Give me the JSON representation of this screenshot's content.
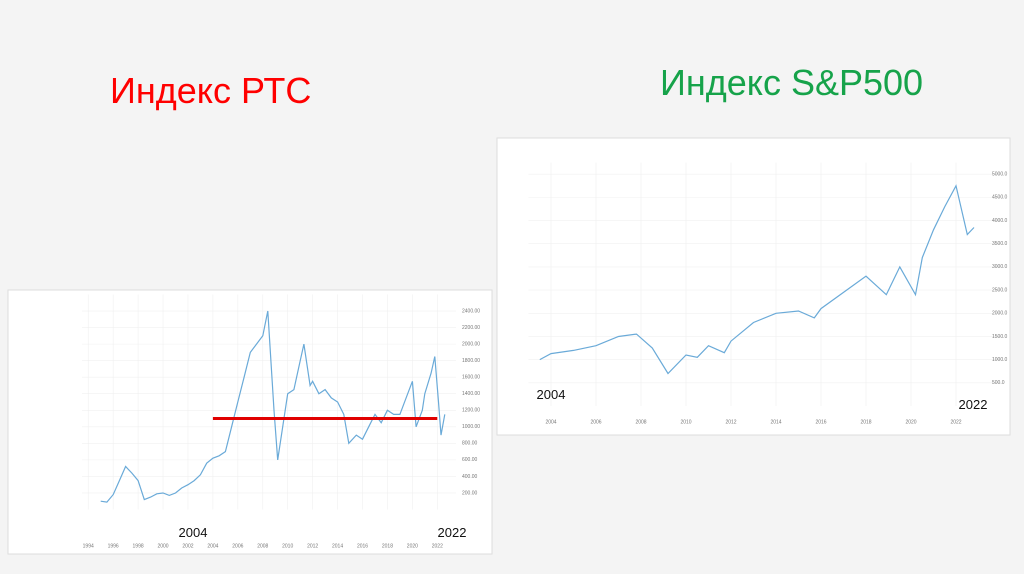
{
  "chart_data": [
    {
      "type": "line",
      "title": "Индекс РТС",
      "title_color": "#ff0000",
      "color": "#6aaad8",
      "x": [
        1995,
        1995.5,
        1996,
        1996.5,
        1997,
        1997.5,
        1998,
        1998.5,
        1999,
        1999.5,
        2000,
        2000.5,
        2001,
        2001.5,
        2002,
        2002.5,
        2003,
        2003.5,
        2004,
        2004.5,
        2005,
        2005.5,
        2006,
        2006.5,
        2007,
        2007.5,
        2008,
        2008.4,
        2008.9,
        2009.2,
        2009.6,
        2010,
        2010.5,
        2011,
        2011.3,
        2011.8,
        2012,
        2012.5,
        2013,
        2013.5,
        2014,
        2014.5,
        2014.9,
        2015.5,
        2016,
        2016.5,
        2017,
        2017.5,
        2018,
        2018.5,
        2019,
        2019.5,
        2020,
        2020.3,
        2020.8,
        2021,
        2021.5,
        2021.8,
        2022.1,
        2022.3,
        2022.6
      ],
      "values": [
        100,
        90,
        180,
        350,
        520,
        440,
        350,
        120,
        150,
        190,
        200,
        170,
        200,
        260,
        300,
        350,
        420,
        560,
        620,
        650,
        700,
        1000,
        1300,
        1600,
        1900,
        2000,
        2100,
        2400,
        1200,
        600,
        1000,
        1400,
        1450,
        1800,
        2000,
        1500,
        1550,
        1400,
        1450,
        1350,
        1300,
        1150,
        800,
        900,
        850,
        1000,
        1150,
        1050,
        1200,
        1150,
        1150,
        1350,
        1550,
        1000,
        1200,
        1400,
        1650,
        1850,
        1300,
        900,
        1150
      ],
      "xlim": [
        1993.5,
        2023.5
      ],
      "ylim": [
        0,
        2600
      ],
      "xticks": [
        1994,
        1996,
        1998,
        2000,
        2002,
        2004,
        2006,
        2008,
        2010,
        2012,
        2014,
        2016,
        2018,
        2020,
        2022
      ],
      "yticks": [
        {
          "value": 200,
          "label": "200.00"
        },
        {
          "value": 400,
          "label": "400.00"
        },
        {
          "value": 600,
          "label": "600.00"
        },
        {
          "value": 800,
          "label": "800.00"
        },
        {
          "value": 1000,
          "label": "1000.00"
        },
        {
          "value": 1200,
          "label": "1200.00"
        },
        {
          "value": 1400,
          "label": "1400.00"
        },
        {
          "value": 1600,
          "label": "1600.00"
        },
        {
          "value": 1800,
          "label": "1800.00"
        },
        {
          "value": 2000,
          "label": "2000.00"
        },
        {
          "value": 2200,
          "label": "2200.00"
        },
        {
          "value": 2400,
          "label": "2400.00"
        }
      ],
      "reference_line": 1100,
      "reference_x": [
        2004,
        2022
      ],
      "reference_color": "#e00000",
      "annotations": [
        "2004",
        "2022"
      ]
    },
    {
      "type": "line",
      "title": "Индекс  S&P500",
      "title_color": "#16a34a",
      "color": "#6aaad8",
      "x": [
        2003.5,
        2004,
        2005,
        2006,
        2007,
        2007.8,
        2008.5,
        2009.2,
        2010,
        2010.5,
        2011,
        2011.7,
        2012,
        2013,
        2014,
        2015,
        2015.7,
        2016,
        2017,
        2018,
        2018.9,
        2019.5,
        2020.2,
        2020.5,
        2021,
        2021.5,
        2022,
        2022.5,
        2022.8
      ],
      "values": [
        1000,
        1130,
        1200,
        1300,
        1500,
        1550,
        1250,
        700,
        1100,
        1050,
        1300,
        1150,
        1400,
        1800,
        2000,
        2050,
        1900,
        2100,
        2450,
        2800,
        2400,
        3000,
        2400,
        3200,
        3800,
        4300,
        4750,
        3700,
        3850
      ],
      "xlim": [
        2003,
        2024
      ],
      "ylim": [
        0,
        5250
      ],
      "xticks": [
        2004,
        2006,
        2008,
        2010,
        2012,
        2014,
        2016,
        2018,
        2020,
        2022
      ],
      "yticks": [
        {
          "value": 500,
          "label": "500.0"
        },
        {
          "value": 1000,
          "label": "1000.0"
        },
        {
          "value": 1500,
          "label": "1500.0"
        },
        {
          "value": 2000,
          "label": "2000.0"
        },
        {
          "value": 2500,
          "label": "2500.0"
        },
        {
          "value": 3000,
          "label": "3000.0"
        },
        {
          "value": 3500,
          "label": "3500.0"
        },
        {
          "value": 4000,
          "label": "4000.0"
        },
        {
          "value": 4500,
          "label": "4500.0"
        },
        {
          "value": 5000,
          "label": "5000.0"
        }
      ],
      "annotations": [
        "2004",
        "2022"
      ]
    }
  ]
}
